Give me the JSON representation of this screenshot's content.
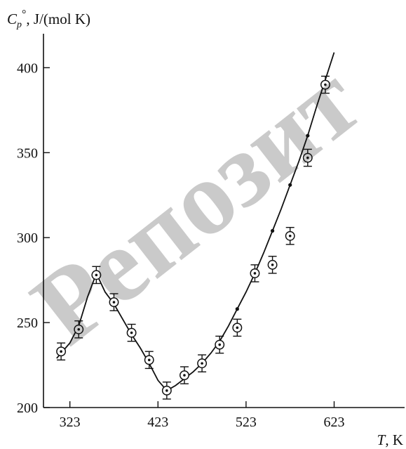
{
  "watermark": "Репозит",
  "chart_data": {
    "type": "scatter",
    "title": "",
    "ylabel_parts": {
      "main": "C",
      "sub": "p",
      "sup": "°",
      "rest": ", J/(mol K)"
    },
    "xlabel_parts": {
      "main": "T",
      "rest": ", K"
    },
    "xlim": [
      293,
      703
    ],
    "ylim": [
      200,
      420
    ],
    "x_ticks": [
      323,
      423,
      523,
      623
    ],
    "y_ticks": [
      200,
      250,
      300,
      350,
      400
    ],
    "grid": false,
    "series": [
      {
        "marker": "circle-dot-errorbar",
        "points": [
          {
            "x": 313,
            "y": 233,
            "err": 5
          },
          {
            "x": 333,
            "y": 246,
            "err": 5
          },
          {
            "x": 353,
            "y": 278,
            "err": 5
          },
          {
            "x": 373,
            "y": 262,
            "err": 5
          },
          {
            "x": 393,
            "y": 244,
            "err": 5
          },
          {
            "x": 413,
            "y": 228,
            "err": 5
          },
          {
            "x": 433,
            "y": 210,
            "err": 5
          },
          {
            "x": 453,
            "y": 219,
            "err": 5
          },
          {
            "x": 473,
            "y": 226,
            "err": 5
          },
          {
            "x": 493,
            "y": 237,
            "err": 5
          },
          {
            "x": 513,
            "y": 247,
            "err": 5
          },
          {
            "x": 533,
            "y": 279,
            "err": 5
          },
          {
            "x": 553,
            "y": 284,
            "err": 5
          },
          {
            "x": 573,
            "y": 301,
            "err": 5
          },
          {
            "x": 593,
            "y": 347,
            "err": 5
          },
          {
            "x": 613,
            "y": 390,
            "err": 5
          }
        ]
      },
      {
        "marker": "small-dot",
        "points": [
          {
            "x": 513,
            "y": 258
          },
          {
            "x": 553,
            "y": 304
          },
          {
            "x": 573,
            "y": 331
          },
          {
            "x": 593,
            "y": 360
          }
        ]
      },
      {
        "marker": "line",
        "points": [
          {
            "x": 308,
            "y": 229
          },
          {
            "x": 313,
            "y": 232
          },
          {
            "x": 323,
            "y": 238
          },
          {
            "x": 333,
            "y": 248
          },
          {
            "x": 343,
            "y": 265
          },
          {
            "x": 353,
            "y": 279
          },
          {
            "x": 363,
            "y": 268
          },
          {
            "x": 373,
            "y": 261
          },
          {
            "x": 383,
            "y": 252
          },
          {
            "x": 393,
            "y": 243
          },
          {
            "x": 403,
            "y": 235
          },
          {
            "x": 413,
            "y": 226
          },
          {
            "x": 423,
            "y": 216
          },
          {
            "x": 433,
            "y": 210
          },
          {
            "x": 443,
            "y": 213
          },
          {
            "x": 453,
            "y": 217
          },
          {
            "x": 463,
            "y": 221
          },
          {
            "x": 473,
            "y": 226
          },
          {
            "x": 483,
            "y": 232
          },
          {
            "x": 493,
            "y": 239
          },
          {
            "x": 503,
            "y": 248
          },
          {
            "x": 513,
            "y": 258
          },
          {
            "x": 523,
            "y": 268
          },
          {
            "x": 533,
            "y": 279
          },
          {
            "x": 543,
            "y": 291
          },
          {
            "x": 553,
            "y": 304
          },
          {
            "x": 563,
            "y": 317
          },
          {
            "x": 573,
            "y": 331
          },
          {
            "x": 583,
            "y": 345
          },
          {
            "x": 593,
            "y": 360
          },
          {
            "x": 603,
            "y": 377
          },
          {
            "x": 613,
            "y": 393
          },
          {
            "x": 623,
            "y": 409
          }
        ]
      }
    ]
  }
}
